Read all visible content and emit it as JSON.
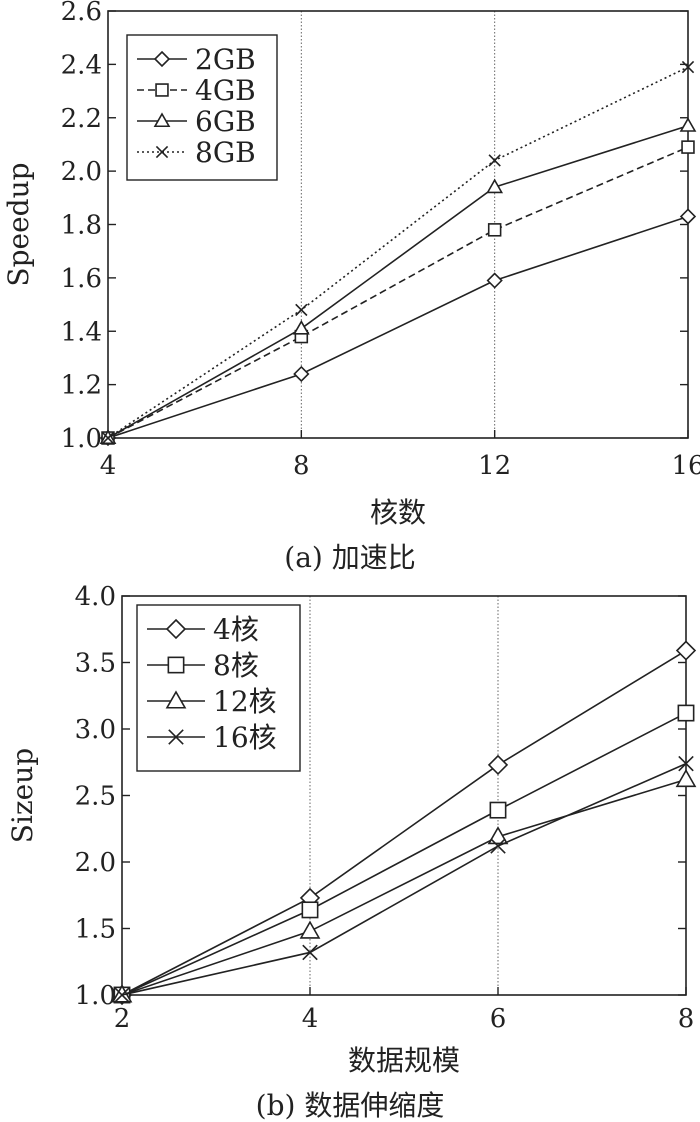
{
  "chart_data": [
    {
      "type": "line",
      "caption": "(a) 加速比",
      "xlabel": "核数",
      "ylabel": "Speedup",
      "x": [
        4,
        8,
        12,
        16
      ],
      "xticks": [
        4,
        8,
        12,
        16
      ],
      "xlim": [
        4,
        16
      ],
      "yticks": [
        "1.0",
        "1.2",
        "1.4",
        "1.6",
        "1.8",
        "2.0",
        "2.2",
        "2.4",
        "2.6"
      ],
      "ylim": [
        1.0,
        2.6
      ],
      "vgrid": [
        8,
        12
      ],
      "legend_position": "top-left",
      "series": [
        {
          "name": "2GB",
          "values": [
            1.0,
            1.24,
            1.59,
            1.83
          ],
          "marker": "diamond",
          "dash": "solid"
        },
        {
          "name": "4GB",
          "values": [
            1.0,
            1.38,
            1.78,
            2.09
          ],
          "marker": "square",
          "dash": "dashed"
        },
        {
          "name": "6GB",
          "values": [
            1.0,
            1.41,
            1.94,
            2.17
          ],
          "marker": "triangle",
          "dash": "solid"
        },
        {
          "name": "8GB",
          "values": [
            1.0,
            1.48,
            2.04,
            2.39
          ],
          "marker": "x",
          "dash": "dotted"
        }
      ]
    },
    {
      "type": "line",
      "caption": "(b) 数据伸缩度",
      "xlabel": "数据规模",
      "ylabel": "Sizeup",
      "x": [
        2,
        4,
        6,
        8
      ],
      "xticks": [
        2,
        4,
        6,
        8
      ],
      "xlim": [
        2,
        8
      ],
      "yticks": [
        "1.0",
        "1.5",
        "2.0",
        "2.5",
        "3.0",
        "3.5",
        "4.0"
      ],
      "ylim": [
        1.0,
        4.0
      ],
      "vgrid": [
        4,
        6
      ],
      "legend_position": "top-left",
      "series": [
        {
          "name": "4核",
          "values": [
            1.0,
            1.73,
            2.73,
            3.59
          ],
          "marker": "diamond",
          "dash": "solid"
        },
        {
          "name": "8核",
          "values": [
            1.0,
            1.64,
            2.39,
            3.12
          ],
          "marker": "square",
          "dash": "solid"
        },
        {
          "name": "12核",
          "values": [
            1.0,
            1.48,
            2.19,
            2.62
          ],
          "marker": "triangle",
          "dash": "solid"
        },
        {
          "name": "16核",
          "values": [
            1.0,
            1.32,
            2.12,
            2.74
          ],
          "marker": "x",
          "dash": "solid"
        }
      ]
    }
  ]
}
